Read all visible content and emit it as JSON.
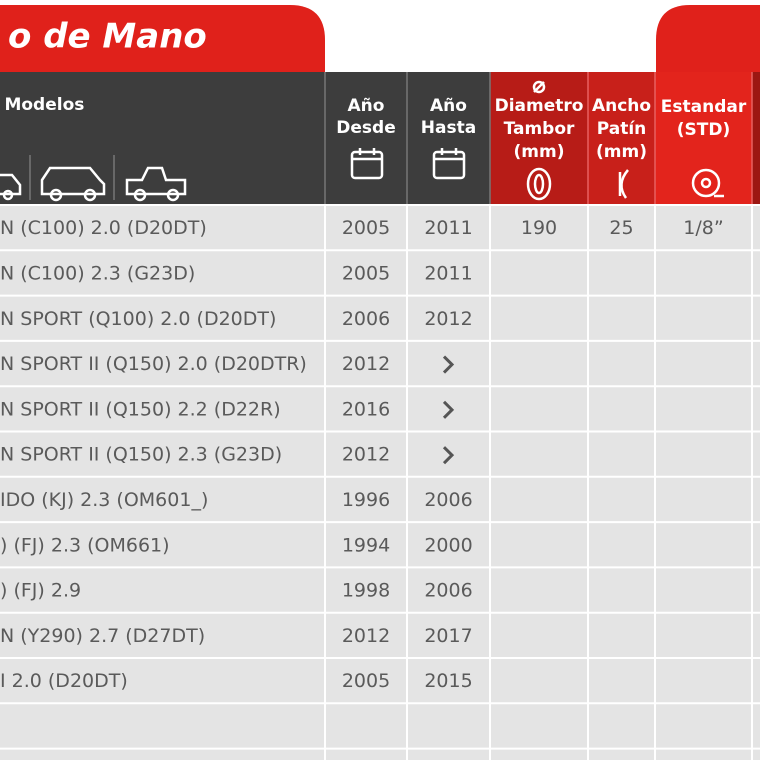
{
  "title": "o de Mano",
  "table": {
    "columns": [
      [
        "caciones Modelos"
      ],
      [
        "Año",
        "Desde"
      ],
      [
        "Año",
        "Hasta"
      ],
      [
        "Diametro",
        "Tambor",
        "(mm)"
      ],
      [
        "Ancho",
        "Patín",
        "(mm)"
      ],
      [
        "Estandar",
        "(STD)"
      ]
    ],
    "rows": [
      [
        "N (C100) 2.0 (D20DT)",
        2005,
        2011,
        190,
        25,
        "1/8”"
      ],
      [
        "N (C100) 2.3 (G23D)",
        2005,
        2011,
        null,
        null,
        null
      ],
      [
        "N SPORT (Q100) 2.0 (D20DT)",
        2006,
        2012,
        null,
        null,
        null
      ],
      [
        "N SPORT II (Q150) 2.0 (D20DTR)",
        2012,
        null,
        null,
        null,
        null
      ],
      [
        "N SPORT II (Q150) 2.2 (D22R)",
        2016,
        null,
        null,
        null,
        null
      ],
      [
        "N SPORT II (Q150) 2.3 (G23D)",
        2012,
        null,
        null,
        null,
        null
      ],
      [
        "IDO (KJ) 2.3 (OM601_)",
        1996,
        2006,
        null,
        null,
        null
      ],
      [
        ") (FJ) 2.3 (OM661)",
        1994,
        2000,
        null,
        null,
        null
      ],
      [
        ") (FJ) 2.9",
        1998,
        2006,
        null,
        null,
        null
      ],
      [
        "N (Y290) 2.7 (D27DT)",
        2012,
        2017,
        null,
        null,
        null
      ],
      [
        "I 2.0 (D20DT)",
        2005,
        2015,
        null,
        null,
        null
      ]
    ]
  }
}
